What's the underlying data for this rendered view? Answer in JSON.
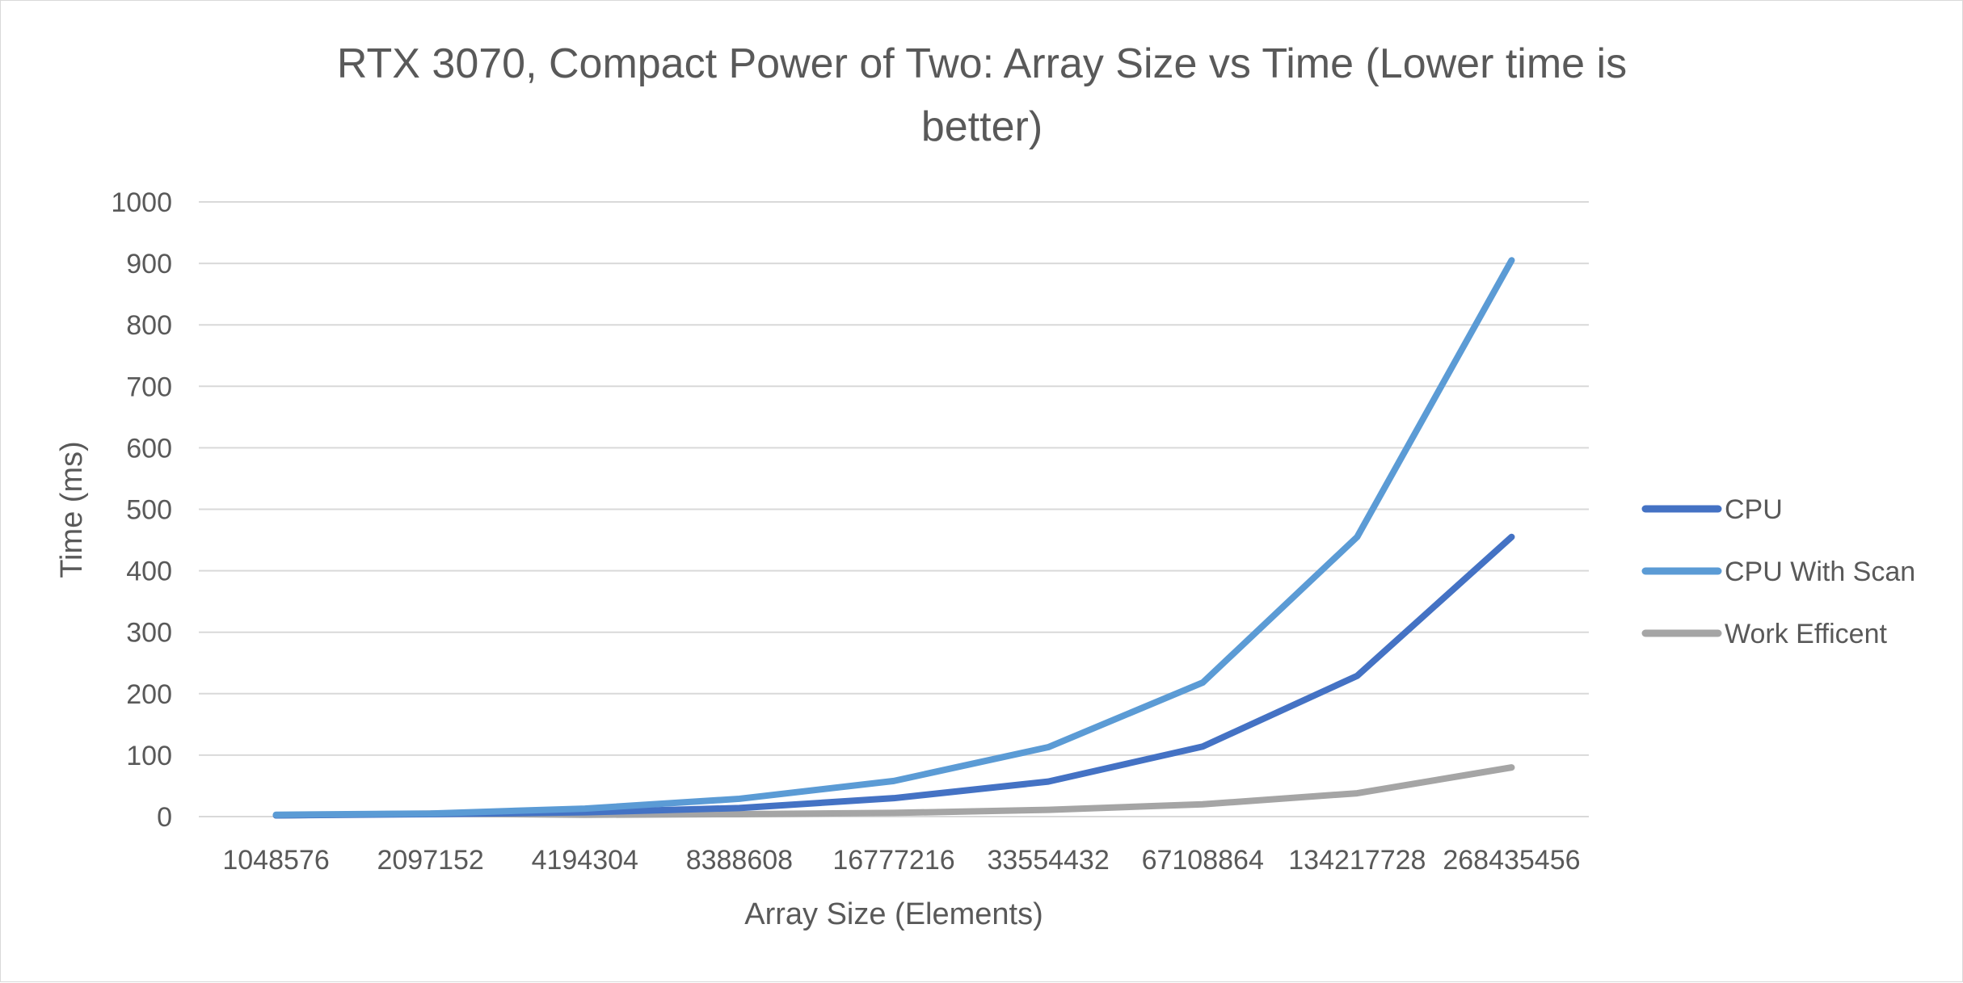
{
  "chart_data": {
    "type": "line",
    "title_lines": [
      "RTX 3070, Compact Power of Two: Array Size vs Time (Lower time is",
      "better)"
    ],
    "xlabel": "Array Size (Elements)",
    "ylabel": "Time (ms)",
    "categories": [
      "1048576",
      "2097152",
      "4194304",
      "8388608",
      "16777216",
      "33554432",
      "67108864",
      "134217728",
      "268435456"
    ],
    "ylim": [
      0,
      1000
    ],
    "yticks": [
      "0",
      "100",
      "200",
      "300",
      "400",
      "500",
      "600",
      "700",
      "800",
      "900",
      "1000"
    ],
    "grid": true,
    "legend_position": "right",
    "series": [
      {
        "name": "CPU",
        "color": "#4472c4",
        "values": [
          2,
          4,
          7,
          14,
          30,
          57,
          114,
          229,
          455
        ]
      },
      {
        "name": "CPU With Scan",
        "color": "#5b9bd5",
        "values": [
          3,
          5,
          13,
          29,
          58,
          113,
          218,
          455,
          905
        ]
      },
      {
        "name": "Work Efficent",
        "color": "#a5a5a5",
        "values": [
          2,
          5,
          3,
          4,
          6,
          11,
          20,
          38,
          80
        ]
      }
    ]
  }
}
